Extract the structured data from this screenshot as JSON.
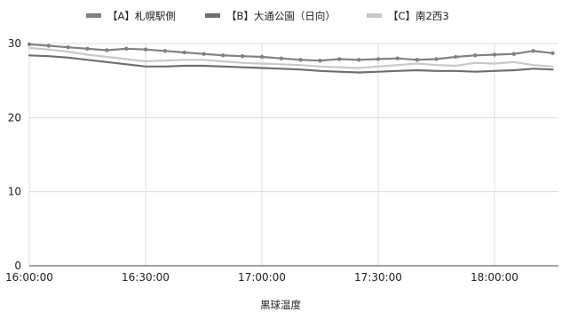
{
  "chart_data": {
    "type": "line",
    "title": "",
    "xlabel": "黒球温度",
    "ylabel": "",
    "ylim": [
      0,
      30
    ],
    "yticks": [
      0,
      10,
      20,
      30
    ],
    "xticks": [
      "16:00:00",
      "16:30:00",
      "17:00:00",
      "17:30:00",
      "18:00:00"
    ],
    "xlim": [
      "16:00:00",
      "18:15:00"
    ],
    "grid": true,
    "legend_position": "top",
    "series": [
      {
        "name": "【A】札幌駅側",
        "color": "#808080",
        "markers": true,
        "points": [
          [
            "16:00:00",
            29.9
          ],
          [
            "16:05:00",
            29.7
          ],
          [
            "16:10:00",
            29.5
          ],
          [
            "16:15:00",
            29.3
          ],
          [
            "16:20:00",
            29.1
          ],
          [
            "16:25:00",
            29.3
          ],
          [
            "16:30:00",
            29.2
          ],
          [
            "16:35:00",
            29.0
          ],
          [
            "16:40:00",
            28.8
          ],
          [
            "16:45:00",
            28.6
          ],
          [
            "16:50:00",
            28.4
          ],
          [
            "16:55:00",
            28.3
          ],
          [
            "17:00:00",
            28.2
          ],
          [
            "17:05:00",
            28.0
          ],
          [
            "17:10:00",
            27.8
          ],
          [
            "17:15:00",
            27.7
          ],
          [
            "17:20:00",
            27.9
          ],
          [
            "17:25:00",
            27.8
          ],
          [
            "17:30:00",
            27.9
          ],
          [
            "17:35:00",
            28.0
          ],
          [
            "17:40:00",
            27.8
          ],
          [
            "17:45:00",
            27.9
          ],
          [
            "17:50:00",
            28.2
          ],
          [
            "17:55:00",
            28.4
          ],
          [
            "18:00:00",
            28.5
          ],
          [
            "18:05:00",
            28.6
          ],
          [
            "18:10:00",
            29.0
          ],
          [
            "18:15:00",
            28.7
          ]
        ]
      },
      {
        "name": "【B】大通公園（日向）",
        "color": "#6e6e6e",
        "markers": false,
        "points": [
          [
            "16:00:00",
            28.4
          ],
          [
            "16:05:00",
            28.3
          ],
          [
            "16:10:00",
            28.1
          ],
          [
            "16:15:00",
            27.8
          ],
          [
            "16:20:00",
            27.5
          ],
          [
            "16:25:00",
            27.2
          ],
          [
            "16:30:00",
            26.9
          ],
          [
            "16:35:00",
            26.9
          ],
          [
            "16:40:00",
            27.0
          ],
          [
            "16:45:00",
            27.0
          ],
          [
            "16:50:00",
            26.9
          ],
          [
            "16:55:00",
            26.8
          ],
          [
            "17:00:00",
            26.7
          ],
          [
            "17:05:00",
            26.6
          ],
          [
            "17:10:00",
            26.5
          ],
          [
            "17:15:00",
            26.3
          ],
          [
            "17:20:00",
            26.2
          ],
          [
            "17:25:00",
            26.1
          ],
          [
            "17:30:00",
            26.2
          ],
          [
            "17:35:00",
            26.3
          ],
          [
            "17:40:00",
            26.4
          ],
          [
            "17:45:00",
            26.3
          ],
          [
            "17:50:00",
            26.3
          ],
          [
            "17:55:00",
            26.2
          ],
          [
            "18:00:00",
            26.3
          ],
          [
            "18:05:00",
            26.4
          ],
          [
            "18:10:00",
            26.6
          ],
          [
            "18:15:00",
            26.5
          ]
        ]
      },
      {
        "name": "【C】南2西3",
        "color": "#c8c8c8",
        "markers": false,
        "points": [
          [
            "16:00:00",
            29.4
          ],
          [
            "16:05:00",
            29.2
          ],
          [
            "16:10:00",
            28.9
          ],
          [
            "16:15:00",
            28.5
          ],
          [
            "16:20:00",
            28.2
          ],
          [
            "16:25:00",
            27.9
          ],
          [
            "16:30:00",
            27.6
          ],
          [
            "16:35:00",
            27.7
          ],
          [
            "16:40:00",
            27.8
          ],
          [
            "16:45:00",
            27.8
          ],
          [
            "16:50:00",
            27.6
          ],
          [
            "16:55:00",
            27.4
          ],
          [
            "17:00:00",
            27.3
          ],
          [
            "17:05:00",
            27.2
          ],
          [
            "17:10:00",
            27.1
          ],
          [
            "17:15:00",
            26.9
          ],
          [
            "17:20:00",
            26.8
          ],
          [
            "17:25:00",
            26.7
          ],
          [
            "17:30:00",
            26.9
          ],
          [
            "17:35:00",
            27.1
          ],
          [
            "17:40:00",
            27.3
          ],
          [
            "17:45:00",
            27.1
          ],
          [
            "17:50:00",
            27.0
          ],
          [
            "17:55:00",
            27.4
          ],
          [
            "18:00:00",
            27.3
          ],
          [
            "18:05:00",
            27.5
          ],
          [
            "18:10:00",
            27.1
          ],
          [
            "18:15:00",
            26.9
          ]
        ]
      }
    ]
  }
}
